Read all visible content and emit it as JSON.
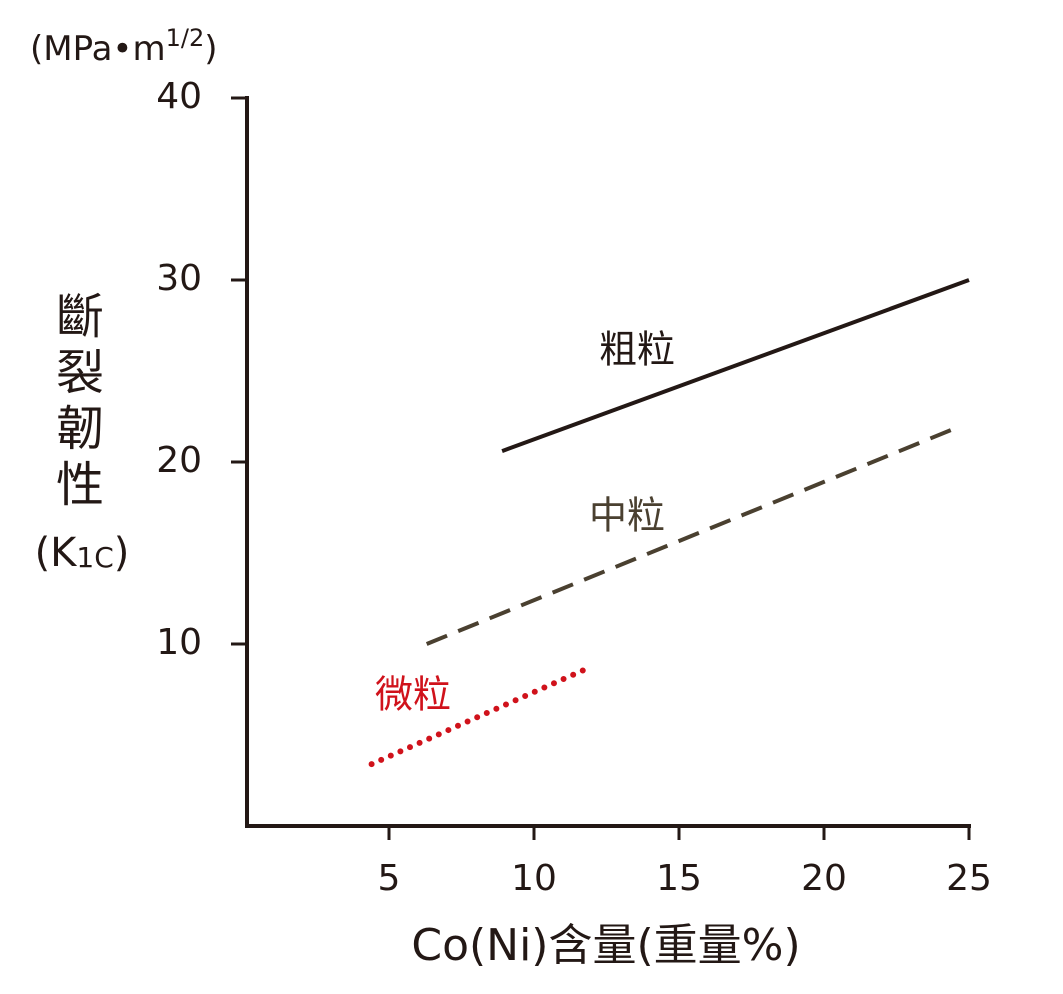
{
  "chart_data": {
    "type": "line",
    "y_unit_parts": [
      "(MPa•m",
      "1/2",
      ")"
    ],
    "y_label": "斷裂韌性",
    "y_label_sub_parts": [
      "(K",
      "1C",
      ")"
    ],
    "x_label": "Co(Ni)含量(重量%)",
    "xlim": [
      0,
      25
    ],
    "xticks": [
      5,
      10,
      15,
      20,
      25
    ],
    "ylim": [
      0,
      40
    ],
    "yticks": [
      10,
      20,
      30,
      40
    ],
    "series": [
      {
        "name": "粗粒",
        "color": "#231815",
        "line_style": "solid",
        "x": [
          8.9,
          25
        ],
        "values": [
          20.6,
          30
        ]
      },
      {
        "name": "中粒",
        "color": "#4a4030",
        "line_style": "dashed",
        "x": [
          6.3,
          24.6
        ],
        "values": [
          10.0,
          21.9
        ]
      },
      {
        "name": "微粒",
        "color": "#d0121b",
        "line_style": "dotted",
        "x": [
          4.4,
          11.9
        ],
        "values": [
          3.4,
          8.7
        ]
      }
    ]
  }
}
